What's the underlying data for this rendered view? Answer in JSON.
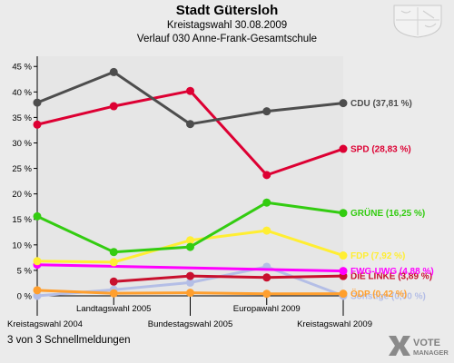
{
  "header": {
    "title": "Stadt Gütersloh",
    "subtitle": "Kreistagswahl 30.08.2009",
    "subtitle2": "Verlauf 030 Anne-Frank-Gesamtschule"
  },
  "footer": {
    "note": "3 von 3 Schnellmeldungen",
    "logo_text_1": "VOTE",
    "logo_text_2": "MANAGER"
  },
  "colors": {
    "background": "#ebebeb",
    "plot_background": "#e6e6e6"
  },
  "chart_data": {
    "type": "line",
    "title": "Stadt Gütersloh",
    "x": [
      "Kreistagswahl 2004",
      "Landtagswahl 2005",
      "Bundestagswahl 2005",
      "Europawahl 2009",
      "Kreistagswahl 2009"
    ],
    "ylim": [
      0,
      47
    ],
    "yticks": [
      0,
      5,
      10,
      15,
      20,
      25,
      30,
      35,
      40,
      45
    ],
    "ytick_labels": [
      "0 %",
      "5 %",
      "10 %",
      "15 %",
      "20 %",
      "25 %",
      "30 %",
      "35 %",
      "40 %",
      "45 %"
    ],
    "grid": false,
    "legend": "right-end labels",
    "series": [
      {
        "name": "Sonstige",
        "label": "Sonstige (0,00 %)",
        "color": "#b4bee6",
        "values": [
          0.0,
          1.2,
          2.6,
          5.7,
          0.0
        ]
      },
      {
        "name": "ÖDP",
        "label": "ÖDP (0,42 %)",
        "color": "#ff9f2e",
        "values": [
          1.1,
          0.5,
          0.6,
          0.4,
          0.42
        ]
      },
      {
        "name": "DIE LINKE",
        "label": "DIE LINKE (3,89 %)",
        "color": "#c8102e",
        "values": [
          null,
          2.8,
          3.9,
          3.6,
          3.89
        ]
      },
      {
        "name": "FWG-UWG",
        "label": "FWG-UWG (4,88 %)",
        "color": "#ff00ff",
        "values": [
          6.1,
          null,
          null,
          null,
          4.88
        ]
      },
      {
        "name": "FDP",
        "label": "FDP (7,92 %)",
        "color": "#ffee33",
        "values": [
          6.8,
          6.6,
          10.9,
          12.8,
          7.92
        ]
      },
      {
        "name": "GRÜNE",
        "label": "GRÜNE (16,25 %)",
        "color": "#33cc11",
        "values": [
          15.6,
          8.6,
          9.6,
          18.3,
          16.25
        ]
      },
      {
        "name": "SPD",
        "label": "SPD (28,83 %)",
        "color": "#dd0033",
        "values": [
          33.6,
          37.2,
          40.2,
          23.7,
          28.83
        ]
      },
      {
        "name": "CDU",
        "label": "CDU (37,81 %)",
        "color": "#4d4d4d",
        "values": [
          37.9,
          43.9,
          33.7,
          36.2,
          37.81
        ]
      }
    ]
  }
}
